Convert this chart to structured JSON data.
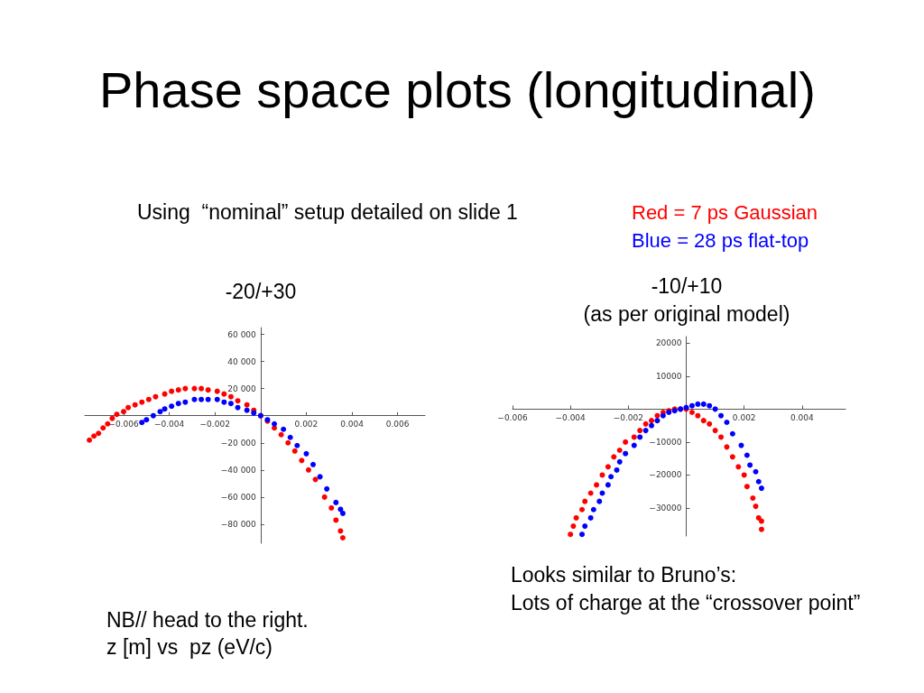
{
  "chart_data": [
    {
      "type": "scatter",
      "title": "-20/+30",
      "annotations": [
        "Phase space plots (longitudinal)",
        "Using  “nominal” setup detailed on slide 1",
        "NB// head to the right.",
        "z [m] vs  pz (eV/c)"
      ],
      "marker": "circle",
      "xlim": [
        -0.0077,
        0.0072
      ],
      "ylim": [
        -94000,
        65000
      ],
      "xticks": [
        {
          "value": -0.006,
          "label": "−0.006"
        },
        {
          "value": -0.004,
          "label": "−0.004"
        },
        {
          "value": -0.002,
          "label": "−0.002"
        },
        0.002,
        0.004,
        0.006
      ],
      "yticks": [
        {
          "value": 60000,
          "label": "60 000"
        },
        {
          "value": 40000,
          "label": "40 000"
        },
        {
          "value": 20000,
          "label": "20 000"
        },
        {
          "value": -20000,
          "label": "−20 000"
        },
        {
          "value": -40000,
          "label": "−40 000"
        },
        {
          "value": -60000,
          "label": "−60 000"
        },
        {
          "value": -80000,
          "label": "−80 000"
        }
      ],
      "series": [
        {
          "color": "#ff0000",
          "x": [
            -0.0075,
            -0.0073,
            -0.0071,
            -0.0069,
            -0.0067,
            -0.0065,
            -0.0063,
            -0.006,
            -0.0058,
            -0.0055,
            -0.0052,
            -0.0049,
            -0.0046,
            -0.0042,
            -0.0039,
            -0.0036,
            -0.0033,
            -0.0029,
            -0.0026,
            -0.0023,
            -0.0019,
            -0.0016,
            -0.0013,
            -0.001,
            -0.0006,
            -0.0003,
            0,
            0.0003,
            0.0006,
            0.0009,
            0.0012,
            0.0015,
            0.0018,
            0.0021,
            0.0024,
            0.0028,
            0.0031,
            0.0033,
            0.0035,
            0.0036
          ],
          "values": [
            -18000,
            -15000,
            -13000,
            -9000,
            -6000,
            -2000,
            1000,
            3000,
            6000,
            8000,
            10000,
            12000,
            14000,
            16000,
            18000,
            19000,
            20000,
            20000,
            20000,
            19000,
            18000,
            16000,
            14000,
            11000,
            8000,
            4000,
            0,
            -4000,
            -9000,
            -14000,
            -20000,
            -26000,
            -33000,
            -40000,
            -47000,
            -60000,
            -68000,
            -77000,
            -85000,
            -90000
          ]
        },
        {
          "color": "#0000ff",
          "x": [
            -0.0052,
            -0.005,
            -0.0047,
            -0.0044,
            -0.0042,
            -0.0039,
            -0.0036,
            -0.0033,
            -0.0029,
            -0.0026,
            -0.0023,
            -0.0019,
            -0.0016,
            -0.0013,
            -0.001,
            -0.0006,
            -0.0003,
            0,
            0.0003,
            0.0006,
            0.001,
            0.0013,
            0.0016,
            0.002,
            0.0023,
            0.0026,
            0.0029,
            0.0033,
            0.0035,
            0.0036
          ],
          "values": [
            -5000,
            -3000,
            0,
            3000,
            5000,
            7000,
            9000,
            10000,
            12000,
            12000,
            12000,
            12000,
            10000,
            9000,
            6000,
            4000,
            2000,
            0,
            -3000,
            -6000,
            -10000,
            -16000,
            -22000,
            -28000,
            -36000,
            -45000,
            -54000,
            -64000,
            -69000,
            -72000
          ]
        }
      ]
    },
    {
      "type": "scatter",
      "title": "-10/+10",
      "subtitle": "(as per original model)",
      "annotations": [
        "Looks similar to Bruno’s:",
        "Lots of charge at the “crossover point”"
      ],
      "marker": "circle",
      "xlim": [
        -0.006,
        0.0055
      ],
      "ylim": [
        -38500,
        22000
      ],
      "xticks": [
        {
          "value": -0.006,
          "label": "−0.006"
        },
        {
          "value": -0.004,
          "label": "−0.004"
        },
        {
          "value": -0.002,
          "label": "−0.002"
        },
        0.002,
        0.004
      ],
      "yticks": [
        20000,
        10000,
        {
          "value": -10000,
          "label": "−10000"
        },
        {
          "value": -20000,
          "label": "−20000"
        },
        {
          "value": -30000,
          "label": "−30000"
        }
      ],
      "series": [
        {
          "name": "Red = 7 ps Gaussian",
          "color": "#ff0000",
          "x": [
            -0.004,
            -0.0039,
            -0.0038,
            -0.0036,
            -0.0035,
            -0.0033,
            -0.0031,
            -0.0029,
            -0.0027,
            -0.0025,
            -0.0023,
            -0.0021,
            -0.0018,
            -0.0016,
            -0.0014,
            -0.0012,
            -0.001,
            -0.0008,
            -0.0006,
            -0.0004,
            -0.0002,
            0,
            0.0002,
            0.0004,
            0.0006,
            0.0008,
            0.001,
            0.0012,
            0.0014,
            0.0016,
            0.0018,
            0.002,
            0.0021,
            0.0023,
            0.0024,
            0.0025,
            0.0026,
            0.0026
          ],
          "values": [
            -38000,
            -35500,
            -33000,
            -30500,
            -28000,
            -25500,
            -23000,
            -20000,
            -17500,
            -14500,
            -12500,
            -10000,
            -8500,
            -6500,
            -4500,
            -3500,
            -2000,
            -1000,
            -500,
            0,
            0,
            0,
            -1000,
            -2000,
            -3500,
            -4500,
            -6500,
            -8500,
            -11500,
            -14500,
            -17500,
            -20000,
            -23500,
            -27000,
            -29500,
            -33000,
            -34000,
            -36500
          ]
        },
        {
          "name": "Blue = 28 ps flat-top",
          "color": "#0000ff",
          "x": [
            -0.0036,
            -0.0035,
            -0.0033,
            -0.0032,
            -0.003,
            -0.0029,
            -0.0027,
            -0.0026,
            -0.0024,
            -0.0023,
            -0.0021,
            -0.0018,
            -0.0016,
            -0.0014,
            -0.0012,
            -0.001,
            -0.0008,
            -0.0006,
            -0.0004,
            -0.0002,
            0,
            0.0002,
            0.0004,
            0.0006,
            0.0008,
            0.001,
            0.0012,
            0.0014,
            0.0016,
            0.0019,
            0.0021,
            0.0022,
            0.0024,
            0.0025,
            0.0026
          ],
          "values": [
            -38000,
            -35500,
            -33000,
            -30500,
            -28000,
            -25500,
            -23000,
            -20500,
            -18500,
            -16000,
            -13500,
            -11000,
            -8500,
            -6500,
            -5000,
            -3500,
            -2000,
            -1000,
            -500,
            0,
            500,
            1000,
            1500,
            1500,
            1000,
            0,
            -2000,
            -4000,
            -7500,
            -11000,
            -14000,
            -17000,
            -19000,
            -22000,
            -24000
          ]
        }
      ]
    }
  ]
}
